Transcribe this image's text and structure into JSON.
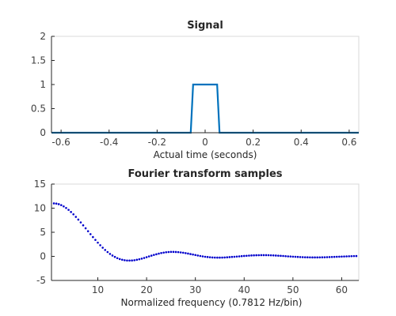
{
  "chart_data": [
    {
      "type": "line",
      "title": "Signal",
      "xlabel": "Actual time (seconds)",
      "ylabel": "",
      "xlim": [
        -0.64,
        0.64
      ],
      "ylim": [
        0,
        2
      ],
      "x_ticks": [
        -0.6,
        -0.4,
        -0.2,
        0,
        0.2,
        0.4,
        0.6
      ],
      "x_tick_labels": [
        "-0.6",
        "-0.4",
        "-0.2",
        "0",
        "0.2",
        "0.4",
        "0.6"
      ],
      "y_ticks": [
        0,
        0.5,
        1,
        1.5,
        2
      ],
      "y_tick_labels": [
        "0",
        "0.5",
        "1",
        "1.5",
        "2"
      ],
      "grid": false,
      "series": [
        {
          "color": "#0072bd",
          "x": [
            -0.64,
            -0.06,
            -0.05,
            0.05,
            0.06,
            0.64
          ],
          "y": [
            0,
            0,
            1,
            1,
            0,
            0
          ]
        }
      ]
    },
    {
      "type": "scatter",
      "title": "Fourier transform samples",
      "xlabel": "Normalized frequency (0.7812 Hz/bin)",
      "ylabel": "",
      "xlim": [
        0.5,
        63.5
      ],
      "ylim": [
        -5,
        15
      ],
      "x_ticks": [
        10,
        20,
        30,
        40,
        50,
        60
      ],
      "x_tick_labels": [
        "10",
        "20",
        "30",
        "40",
        "50",
        "60"
      ],
      "y_ticks": [
        -5,
        0,
        5,
        10,
        15
      ],
      "y_tick_labels": [
        "-5",
        "0",
        "5",
        "10",
        "15"
      ],
      "grid": false,
      "series": [
        {
          "color": "#0000cc",
          "marker": "dot",
          "x": [
            1.0,
            1.5,
            2.0,
            2.5,
            3.0,
            3.5,
            4.0,
            4.5,
            5.0,
            5.5,
            6.0,
            6.5,
            7.0,
            7.5,
            8.0,
            8.5,
            9.0,
            9.5,
            10.0,
            10.5,
            11.0,
            11.5,
            12.0,
            12.5,
            13.0,
            13.5,
            14.0,
            14.5,
            15.0,
            15.5,
            16.0,
            16.5,
            17.0,
            17.5,
            18.0,
            18.5,
            19.0,
            19.5,
            20.0,
            20.5,
            21.0,
            21.5,
            22.0,
            22.5,
            23.0,
            23.5,
            24.0,
            24.5,
            25.0,
            25.5,
            26.0,
            26.5,
            27.0,
            27.5,
            28.0,
            28.5,
            29.0,
            29.5,
            30.0,
            30.5,
            31.0,
            31.5,
            32.0,
            32.5,
            33.0,
            33.5,
            34.0,
            34.5,
            35.0,
            35.5,
            36.0,
            36.5,
            37.0,
            37.5,
            38.0,
            38.5,
            39.0,
            39.5,
            40.0,
            40.5,
            41.0,
            41.5,
            42.0,
            42.5,
            43.0,
            43.5,
            44.0,
            44.5,
            45.0,
            45.5,
            46.0,
            46.5,
            47.0,
            47.5,
            48.0,
            48.5,
            49.0,
            49.5,
            50.0,
            50.5,
            51.0,
            51.5,
            52.0,
            52.5,
            53.0,
            53.5,
            54.0,
            54.5,
            55.0,
            55.5,
            56.0,
            56.5,
            57.0,
            57.5,
            58.0,
            58.5,
            59.0,
            59.5,
            60.0,
            60.5,
            61.0,
            61.5,
            62.0,
            62.5,
            63.0
          ],
          "y": [
            10.99,
            10.95,
            10.83,
            10.63,
            10.37,
            10.04,
            9.65,
            9.21,
            8.72,
            8.19,
            7.63,
            7.05,
            6.44,
            5.83,
            5.22,
            4.61,
            4.0,
            3.42,
            2.85,
            2.31,
            1.8,
            1.33,
            0.9,
            0.51,
            0.17,
            -0.12,
            -0.37,
            -0.56,
            -0.7,
            -0.8,
            -0.86,
            -0.87,
            -0.85,
            -0.8,
            -0.71,
            -0.6,
            -0.47,
            -0.33,
            -0.17,
            -0.01,
            0.15,
            0.3,
            0.44,
            0.57,
            0.69,
            0.78,
            0.85,
            0.9,
            0.93,
            0.93,
            0.91,
            0.88,
            0.82,
            0.75,
            0.67,
            0.58,
            0.48,
            0.38,
            0.28,
            0.18,
            0.08,
            0.0,
            -0.08,
            -0.14,
            -0.19,
            -0.23,
            -0.25,
            -0.26,
            -0.26,
            -0.25,
            -0.23,
            -0.2,
            -0.16,
            -0.12,
            -0.08,
            -0.04,
            0.0,
            0.05,
            0.09,
            0.12,
            0.16,
            0.19,
            0.21,
            0.23,
            0.24,
            0.25,
            0.25,
            0.25,
            0.24,
            0.22,
            0.2,
            0.17,
            0.14,
            0.11,
            0.08,
            0.04,
            0.0,
            -0.03,
            -0.06,
            -0.09,
            -0.12,
            -0.15,
            -0.17,
            -0.19,
            -0.2,
            -0.21,
            -0.22,
            -0.22,
            -0.22,
            -0.21,
            -0.2,
            -0.19,
            -0.17,
            -0.15,
            -0.13,
            -0.11,
            -0.09,
            -0.07,
            -0.04,
            -0.02,
            0.0,
            0.02,
            0.04,
            0.06,
            0.07
          ]
        }
      ]
    }
  ]
}
